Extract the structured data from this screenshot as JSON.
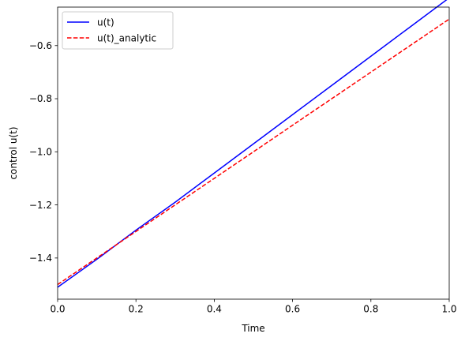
{
  "chart_data": {
    "type": "line",
    "xlabel": "Time",
    "ylabel": "control u(t)",
    "xlim": [
      0.0,
      1.0
    ],
    "ylim": [
      -1.555,
      -0.455
    ],
    "xticks": [
      {
        "value": 0.0,
        "label": "0.0"
      },
      {
        "value": 0.2,
        "label": "0.2"
      },
      {
        "value": 0.4,
        "label": "0.4"
      },
      {
        "value": 0.6,
        "label": "0.6"
      },
      {
        "value": 0.8,
        "label": "0.8"
      },
      {
        "value": 1.0,
        "label": "1.0"
      }
    ],
    "yticks": [
      {
        "value": -1.4,
        "label": "−1.4"
      },
      {
        "value": -1.2,
        "label": "−1.2"
      },
      {
        "value": -1.0,
        "label": "−1.0"
      },
      {
        "value": -0.8,
        "label": "−0.8"
      },
      {
        "value": -0.6,
        "label": "−0.6"
      }
    ],
    "grid": false,
    "legend_position": "top-left",
    "series": [
      {
        "name": "u(t)",
        "color": "#0000ff",
        "style": "solid",
        "x": [
          0.0,
          0.1,
          0.2,
          0.3,
          0.4,
          0.5,
          0.6,
          0.7,
          0.8,
          0.9,
          1.0
        ],
        "y": [
          -1.51,
          -1.405,
          -1.295,
          -1.19,
          -1.08,
          -0.97,
          -0.86,
          -0.75,
          -0.64,
          -0.53,
          -0.42
        ]
      },
      {
        "name": "u(t)_analytic",
        "color": "#ff0000",
        "style": "dashed",
        "x": [
          0.0,
          0.1,
          0.2,
          0.3,
          0.4,
          0.5,
          0.6,
          0.7,
          0.8,
          0.9,
          1.0
        ],
        "y": [
          -1.5,
          -1.4,
          -1.3,
          -1.2,
          -1.1,
          -1.0,
          -0.9,
          -0.8,
          -0.7,
          -0.6,
          -0.5
        ]
      }
    ]
  }
}
